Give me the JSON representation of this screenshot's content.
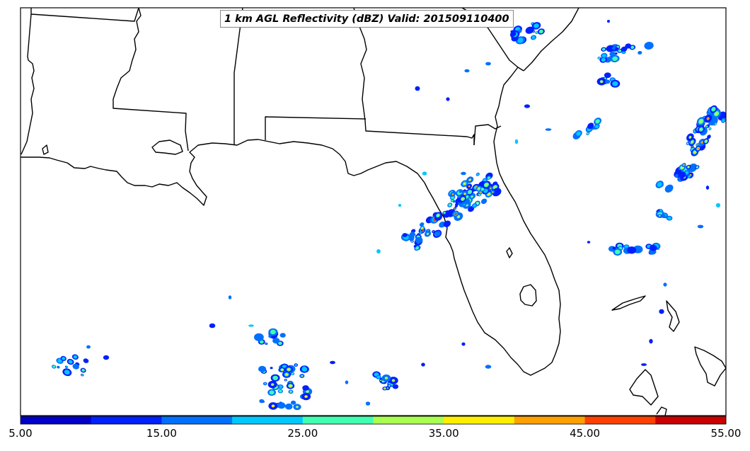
{
  "map": {
    "title": "1 km AGL Reflectivity (dBZ) Valid: 201509110400",
    "variable": "Reflectivity",
    "units": "dBZ",
    "level": "1 km AGL",
    "valid_time": "201509110400",
    "states": [
      "Louisiana",
      "Mississippi",
      "Alabama",
      "Georgia",
      "South Carolina",
      "Florida"
    ],
    "background_color": "#ffffff",
    "coastline_color": "#000000"
  },
  "colorbar": {
    "colors": [
      "#0000c8",
      "#0020ff",
      "#0070ff",
      "#00c8ff",
      "#40ffb0",
      "#a8ff50",
      "#ffee00",
      "#ffa000",
      "#ff4000",
      "#c80000"
    ],
    "tick_labels": [
      "5.00",
      "15.00",
      "25.00",
      "35.00",
      "45.00",
      "55.00"
    ],
    "min": 5,
    "max": 55,
    "step": 5
  }
}
